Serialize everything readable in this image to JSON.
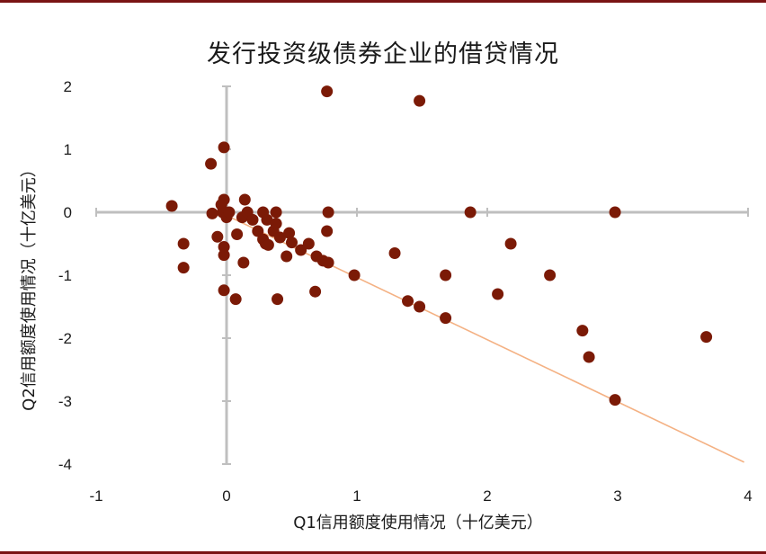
{
  "chart_data": {
    "type": "scatter",
    "title": "发行投资级债券企业的借贷情况",
    "xlabel": "Q1信用额度使用情况（十亿美元）",
    "ylabel": "Q2信用额度使用情况（十亿美元）",
    "xlim": [
      -1,
      4
    ],
    "ylim": [
      -4,
      2
    ],
    "xticks": [
      "-1",
      "0",
      "1",
      "2",
      "3",
      "4"
    ],
    "yticks": [
      "2",
      "1",
      "0",
      "-1",
      "-2",
      "-3",
      "-4"
    ],
    "grid": false,
    "trendline": {
      "from": [
        0,
        -0.05
      ],
      "to": [
        3.97,
        -3.97
      ],
      "color": "#f4b183"
    },
    "point_color": "#7b1a06",
    "points": [
      [
        -0.42,
        0.1
      ],
      [
        -0.33,
        -0.5
      ],
      [
        -0.33,
        -0.88
      ],
      [
        -0.12,
        0.77
      ],
      [
        -0.11,
        -0.02
      ],
      [
        -0.07,
        -0.39
      ],
      [
        -0.04,
        0.12
      ],
      [
        -0.03,
        0.0
      ],
      [
        -0.02,
        1.03
      ],
      [
        -0.02,
        0.2
      ],
      [
        -0.02,
        -0.55
      ],
      [
        -0.02,
        -0.68
      ],
      [
        -0.02,
        -1.24
      ],
      [
        0.0,
        -0.08
      ],
      [
        0.02,
        0.0
      ],
      [
        0.07,
        -1.38
      ],
      [
        0.08,
        -0.35
      ],
      [
        0.12,
        -0.08
      ],
      [
        0.13,
        -0.8
      ],
      [
        0.14,
        0.2
      ],
      [
        0.16,
        0.0
      ],
      [
        0.2,
        -0.12
      ],
      [
        0.24,
        -0.3
      ],
      [
        0.28,
        0.0
      ],
      [
        0.28,
        -0.43
      ],
      [
        0.3,
        -0.5
      ],
      [
        0.31,
        -0.12
      ],
      [
        0.32,
        -0.52
      ],
      [
        0.36,
        -0.3
      ],
      [
        0.38,
        0.0
      ],
      [
        0.38,
        -0.18
      ],
      [
        0.39,
        -1.38
      ],
      [
        0.41,
        -0.4
      ],
      [
        0.46,
        -0.7
      ],
      [
        0.48,
        -0.33
      ],
      [
        0.5,
        -0.48
      ],
      [
        0.57,
        -0.6
      ],
      [
        0.63,
        -0.5
      ],
      [
        0.68,
        -1.26
      ],
      [
        0.69,
        -0.7
      ],
      [
        0.74,
        -0.77
      ],
      [
        0.77,
        1.92
      ],
      [
        0.77,
        -0.3
      ],
      [
        0.78,
        0.0
      ],
      [
        0.78,
        -0.8
      ],
      [
        0.98,
        -1.0
      ],
      [
        1.29,
        -0.65
      ],
      [
        1.39,
        -1.41
      ],
      [
        1.48,
        1.77
      ],
      [
        1.48,
        -1.5
      ],
      [
        1.68,
        -1.0
      ],
      [
        1.68,
        -1.68
      ],
      [
        1.87,
        0.0
      ],
      [
        2.08,
        -1.3
      ],
      [
        2.18,
        -0.5
      ],
      [
        2.48,
        -1.0
      ],
      [
        2.73,
        -1.88
      ],
      [
        2.78,
        -2.3
      ],
      [
        2.98,
        0.0
      ],
      [
        2.98,
        -2.98
      ],
      [
        3.68,
        -1.98
      ]
    ]
  }
}
